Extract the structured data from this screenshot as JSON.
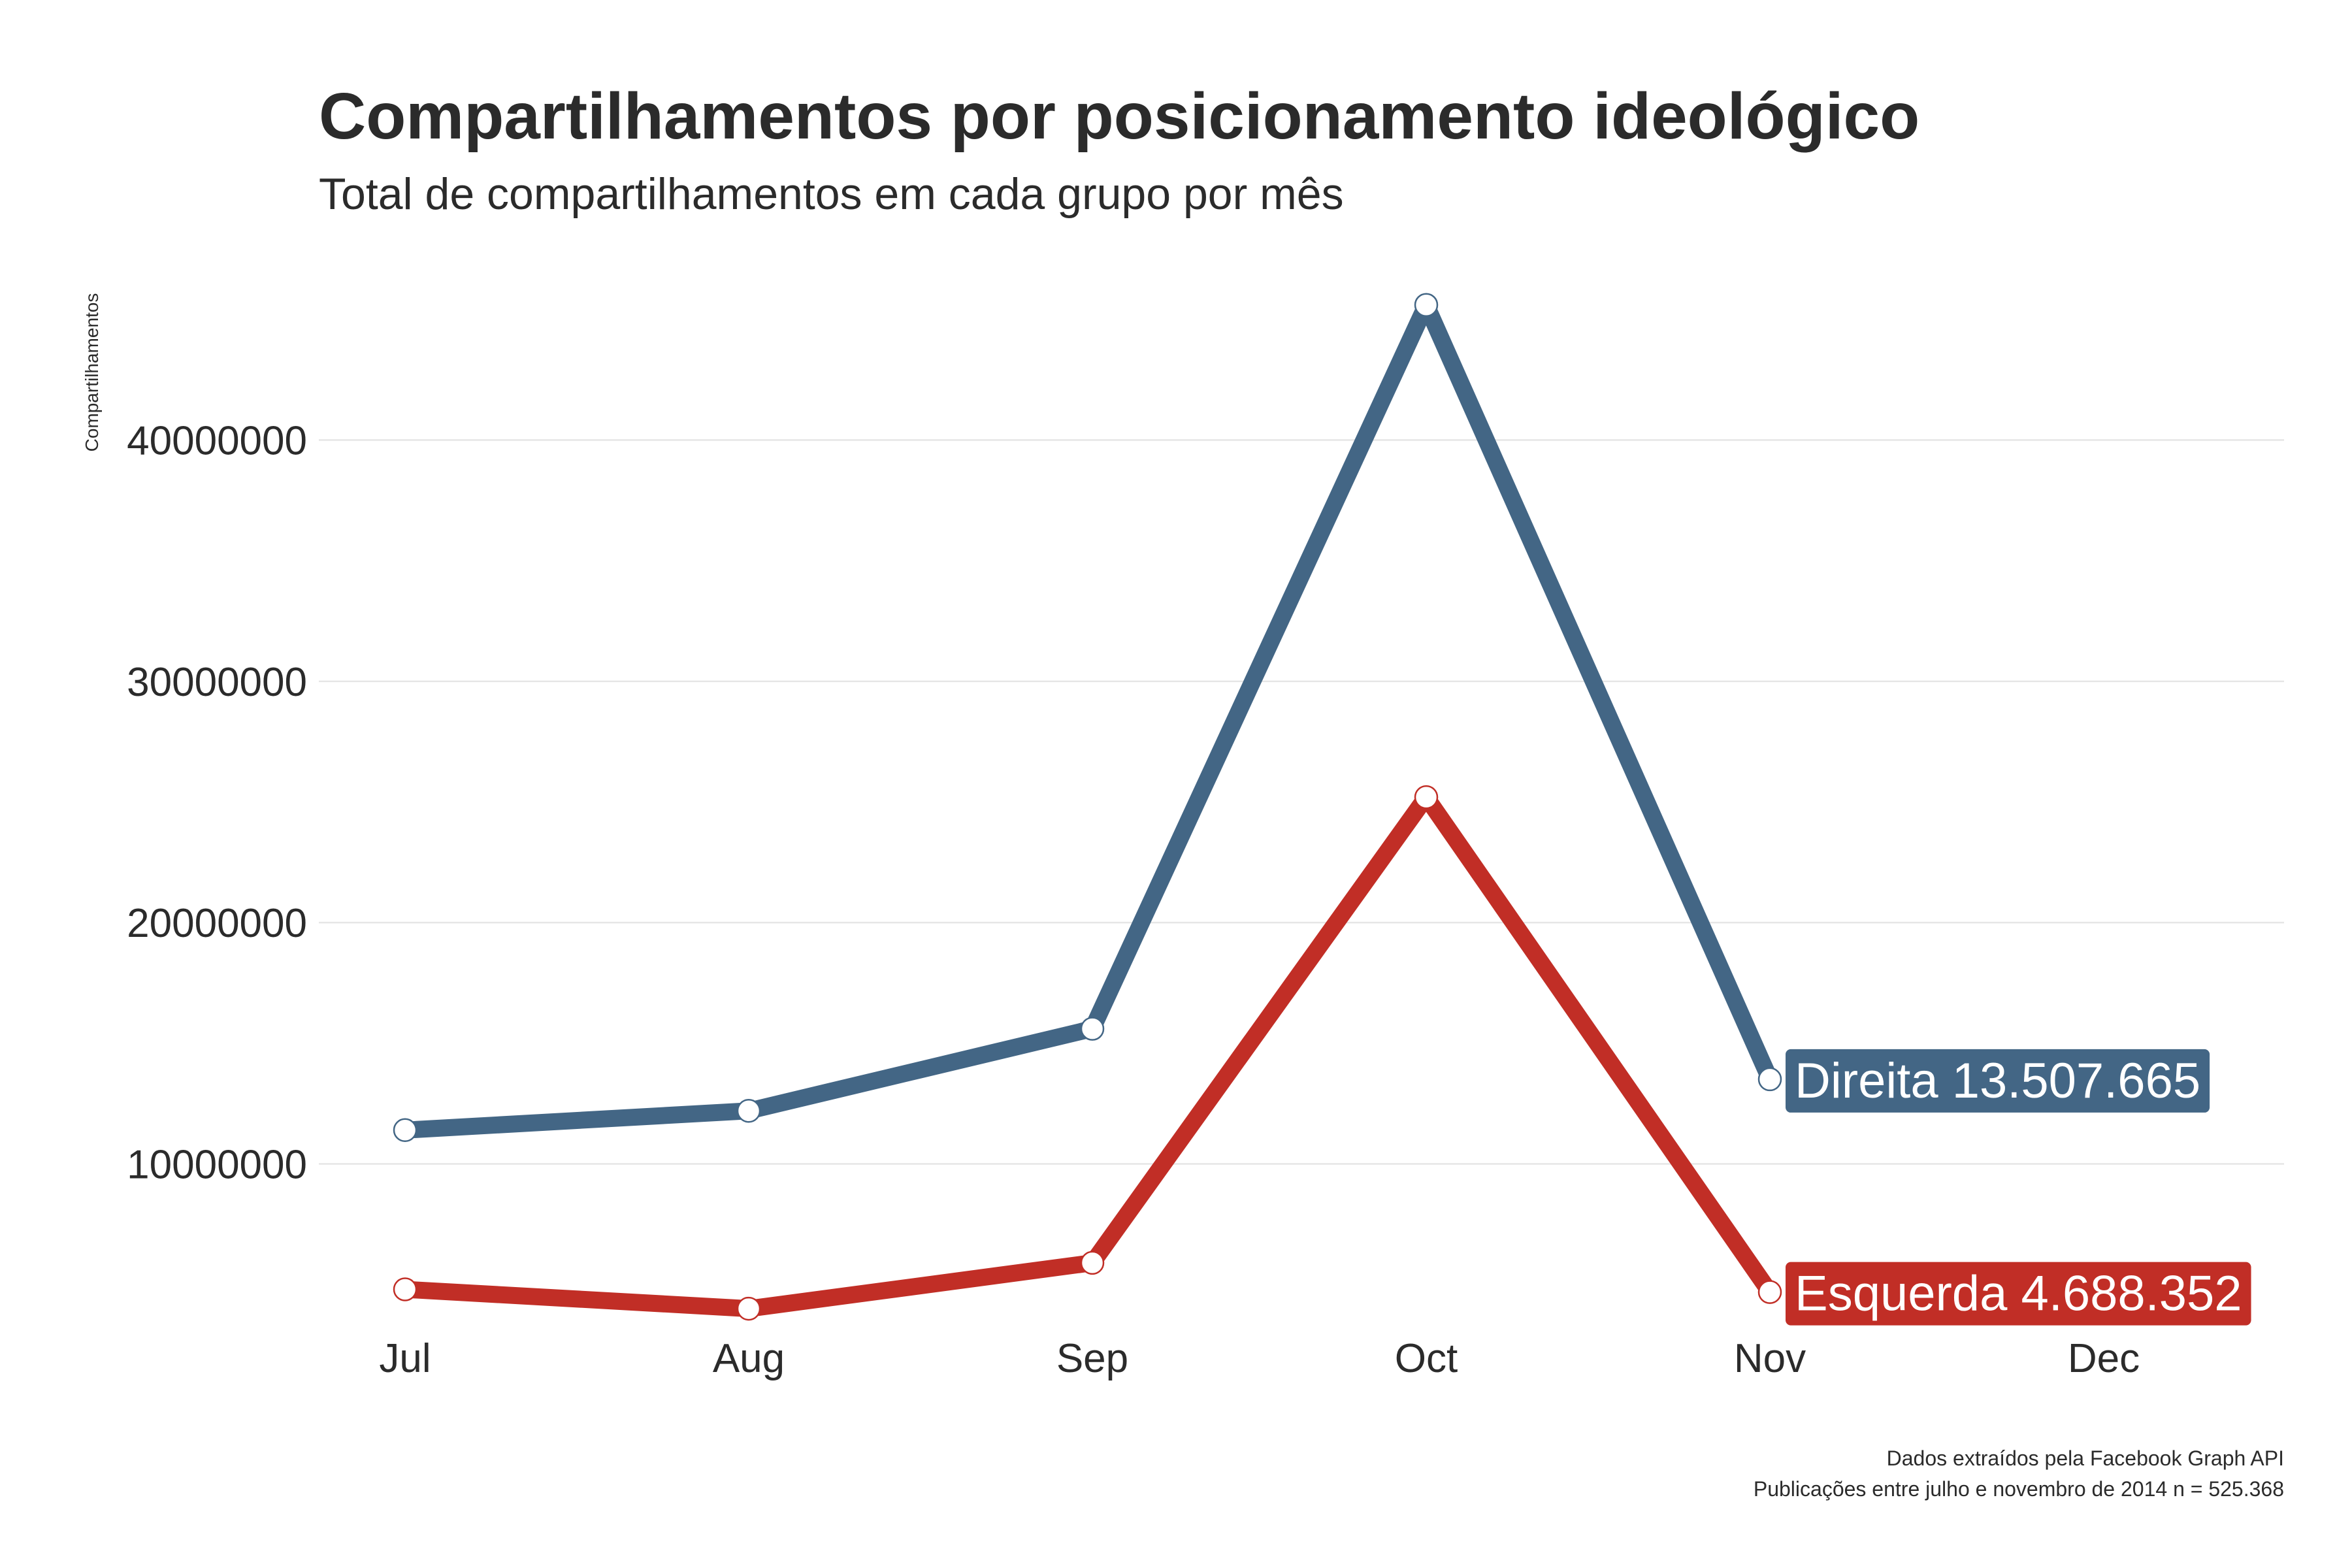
{
  "chart_data": {
    "type": "line",
    "title": "Compartilhamentos por posicionamento ideológico",
    "subtitle": "Total de compartilhamentos  em cada grupo por mês",
    "ylabel": "Compartilhamentos",
    "xlabel": "",
    "categories": [
      "Jul",
      "Aug",
      "Sep",
      "Oct",
      "Nov",
      "Dec"
    ],
    "ylim": [
      3000000,
      47000000
    ],
    "yticks": [
      10000000,
      20000000,
      30000000,
      40000000
    ],
    "ytick_labels": [
      "10000000",
      "20000000",
      "30000000",
      "40000000"
    ],
    "grid": true,
    "series": [
      {
        "name": "Direita",
        "color": "#436685",
        "values": [
          11400000,
          12200000,
          15600000,
          45600000,
          13507665,
          null
        ],
        "end_label": "Direita 13.507.665"
      },
      {
        "name": "Esquerda",
        "color": "#c12e26",
        "values": [
          4800000,
          4000000,
          5900000,
          25200000,
          4688352,
          null
        ],
        "end_label": "Esquerda 4.688.352"
      }
    ],
    "caption": [
      "Dados extraídos pela Facebook Graph API",
      "Publicações entre julho e novembro de 2014 n = 525.368"
    ]
  }
}
